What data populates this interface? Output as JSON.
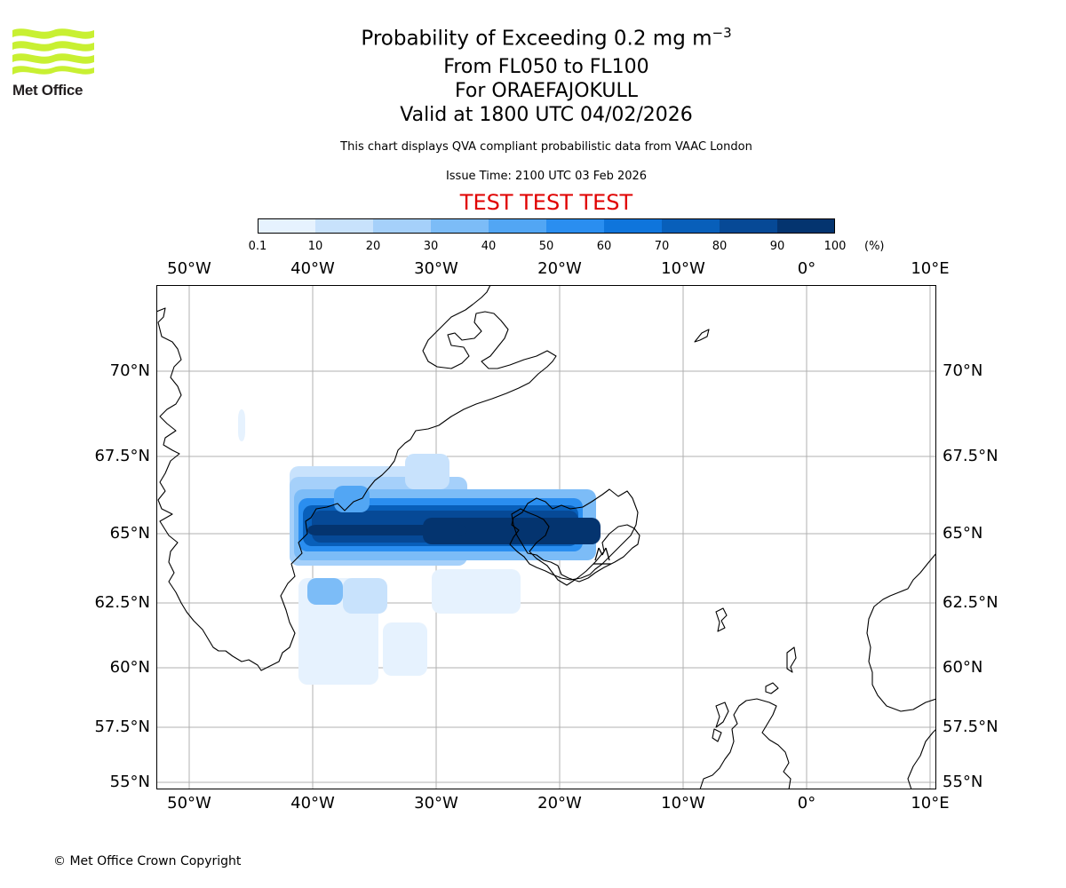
{
  "header": {
    "title_main": "Probability of Exceeding 0.2 mg m",
    "title_sup": "−3",
    "level_range": "From FL050 to FL100",
    "volcano": "For ORAEFAJOKULL",
    "valid_time": "Valid at 1800 UTC 04/02/2026",
    "description": "This chart displays QVA compliant probabilistic data from VAAC London",
    "issue_time": "Issue Time: 2100 UTC 03 Feb 2026",
    "test_banner": "TEST TEST TEST"
  },
  "logo": {
    "text": "Met Office",
    "color": "#c8f032"
  },
  "colorbar": {
    "ticks": [
      "0.1",
      "10",
      "20",
      "30",
      "40",
      "50",
      "60",
      "70",
      "80",
      "90",
      "100"
    ],
    "unit": "(%)",
    "colors": [
      "#e6f2fe",
      "#c8e2fc",
      "#a5d0fa",
      "#7cbcf7",
      "#52a6f4",
      "#2a8ef0",
      "#0f75dc",
      "#085fba",
      "#064996",
      "#04346f",
      "#02214d"
    ]
  },
  "map": {
    "lon_labels": [
      "50°W",
      "40°W",
      "30°W",
      "20°W",
      "10°W",
      "0°",
      "10°E"
    ],
    "lat_labels": [
      "70°N",
      "67.5°N",
      "65°N",
      "62.5°N",
      "60°N",
      "57.5°N",
      "55°N"
    ],
    "land_color": "#000000",
    "grid_color": "#b0b0b0"
  },
  "footer": {
    "copyright": "© Met Office Crown Copyright"
  }
}
